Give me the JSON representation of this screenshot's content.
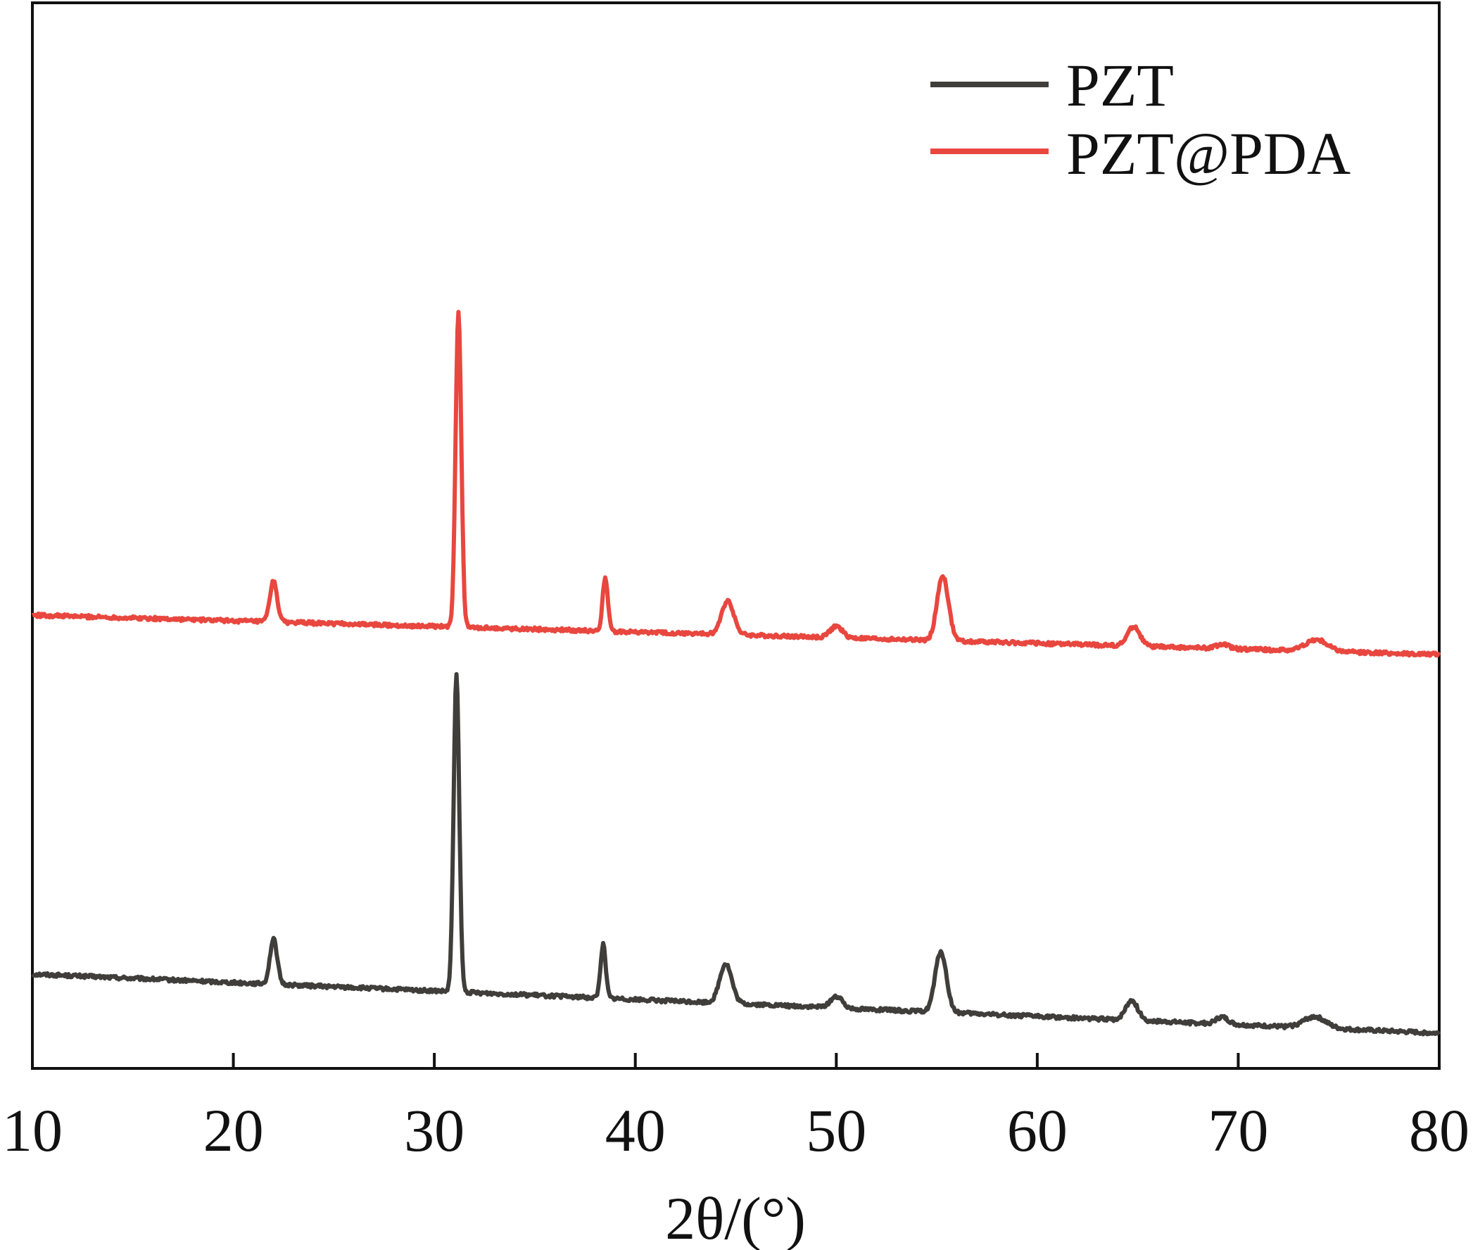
{
  "chart_data": {
    "type": "line",
    "xlabel": "2θ/(°)",
    "ylabel": "",
    "xlim": [
      10,
      80
    ],
    "xticks": [
      10,
      20,
      30,
      40,
      50,
      60,
      70,
      80
    ],
    "yticks_visible": false,
    "grid": false,
    "legend_position": "top-right",
    "series": [
      {
        "name": "PZT",
        "color": "#3f3e3a",
        "baseline": 0,
        "baseline_slope": -0.006,
        "peaks": [
          {
            "x": 22.0,
            "height": 0.32,
            "width": 0.18
          },
          {
            "x": 31.1,
            "height": 2.25,
            "width": 0.14
          },
          {
            "x": 38.4,
            "height": 0.38,
            "width": 0.13
          },
          {
            "x": 44.5,
            "height": 0.28,
            "width": 0.3
          },
          {
            "x": 50.0,
            "height": 0.08,
            "width": 0.3
          },
          {
            "x": 55.2,
            "height": 0.43,
            "width": 0.28
          },
          {
            "x": 64.7,
            "height": 0.14,
            "width": 0.3
          },
          {
            "x": 69.2,
            "height": 0.05,
            "width": 0.3
          },
          {
            "x": 73.8,
            "height": 0.08,
            "width": 0.55
          }
        ]
      },
      {
        "name": "PZT@PDA",
        "color": "#e8473f",
        "baseline": 2.55,
        "baseline_slope": -0.004,
        "peaks": [
          {
            "x": 22.0,
            "height": 0.29,
            "width": 0.18
          },
          {
            "x": 31.2,
            "height": 2.24,
            "width": 0.14
          },
          {
            "x": 38.5,
            "height": 0.38,
            "width": 0.13
          },
          {
            "x": 44.6,
            "height": 0.24,
            "width": 0.3
          },
          {
            "x": 50.0,
            "height": 0.08,
            "width": 0.3
          },
          {
            "x": 55.3,
            "height": 0.46,
            "width": 0.28
          },
          {
            "x": 64.8,
            "height": 0.14,
            "width": 0.3
          },
          {
            "x": 69.2,
            "height": 0.03,
            "width": 0.3
          },
          {
            "x": 73.9,
            "height": 0.08,
            "width": 0.55
          }
        ]
      }
    ]
  }
}
